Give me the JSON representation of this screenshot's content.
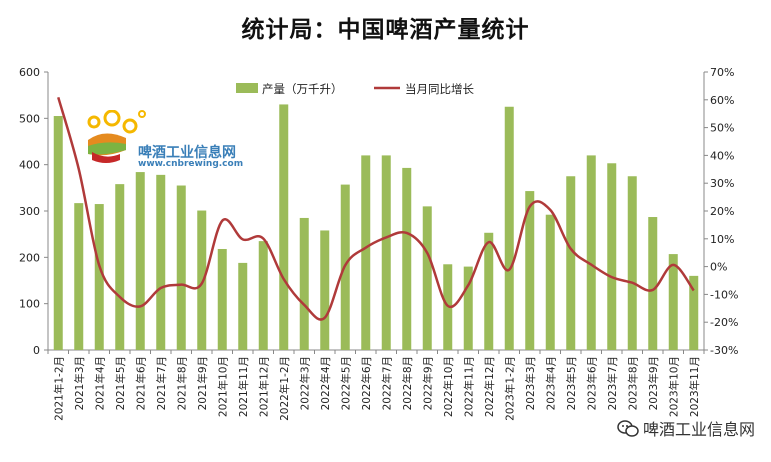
{
  "title": "统计局：中国啤酒产量统计",
  "logo": {
    "name": "啤酒工业信息网",
    "url": "www.cnbrewing.com"
  },
  "watermark": {
    "text": "啤酒工业信息网",
    "icon": "wechat-icon"
  },
  "colors": {
    "bar": "#9BBB59",
    "line": "#B03A3A",
    "axis": "#888888"
  },
  "chart_data": {
    "type": "bar",
    "title": "统计局：中国啤酒产量统计",
    "legend_position": "top",
    "categories": [
      "2021年1-2月",
      "2021年3月",
      "2021年4月",
      "2021年5月",
      "2021年6月",
      "2021年7月",
      "2021年8月",
      "2021年9月",
      "2021年10月",
      "2021年11月",
      "2021年12月",
      "2022年1-2月",
      "2022年3月",
      "2022年4月",
      "2022年5月",
      "2022年6月",
      "2022年7月",
      "2022年8月",
      "2022年9月",
      "2022年10月",
      "2022年11月",
      "2022年12月",
      "2023年1-2月",
      "2023年3月",
      "2023年4月",
      "2023年5月",
      "2023年6月",
      "2023年7月",
      "2023年8月",
      "2023年9月",
      "2023年10月",
      "2023年11月"
    ],
    "series": [
      {
        "name": "产量（万千升）",
        "type": "bar",
        "axis": "left",
        "values": [
          505,
          317,
          315,
          358,
          384,
          378,
          355,
          301,
          218,
          188,
          235,
          530,
          285,
          258,
          357,
          420,
          420,
          393,
          310,
          185,
          180,
          253,
          525,
          343,
          292,
          375,
          420,
          403,
          375,
          287,
          207,
          160
        ]
      },
      {
        "name": "当月同比增长",
        "type": "line",
        "axis": "right",
        "values": [
          60.9,
          35.1,
          0.4,
          -10.9,
          -14.3,
          -7.7,
          -6.5,
          -6.1,
          16.5,
          9.8,
          10.1,
          -4.5,
          -13.8,
          -18.4,
          0.5,
          6.8,
          10.5,
          12.1,
          4.9,
          -14.1,
          -6.7,
          8.8,
          -1.1,
          21.6,
          20.4,
          6.4,
          0.7,
          -3.8,
          -5.8,
          -8.4,
          0.6,
          -8.6
        ]
      }
    ],
    "y_left": {
      "min": 0,
      "max": 600,
      "ticks": [
        "0",
        "100",
        "200",
        "300",
        "400",
        "500",
        "600"
      ]
    },
    "y_right": {
      "min": -30,
      "max": 70,
      "ticks": [
        "-30%",
        "-20%",
        "-10%",
        "0%",
        "10%",
        "20%",
        "30%",
        "40%",
        "50%",
        "60%",
        "70%"
      ]
    },
    "grid": false
  }
}
